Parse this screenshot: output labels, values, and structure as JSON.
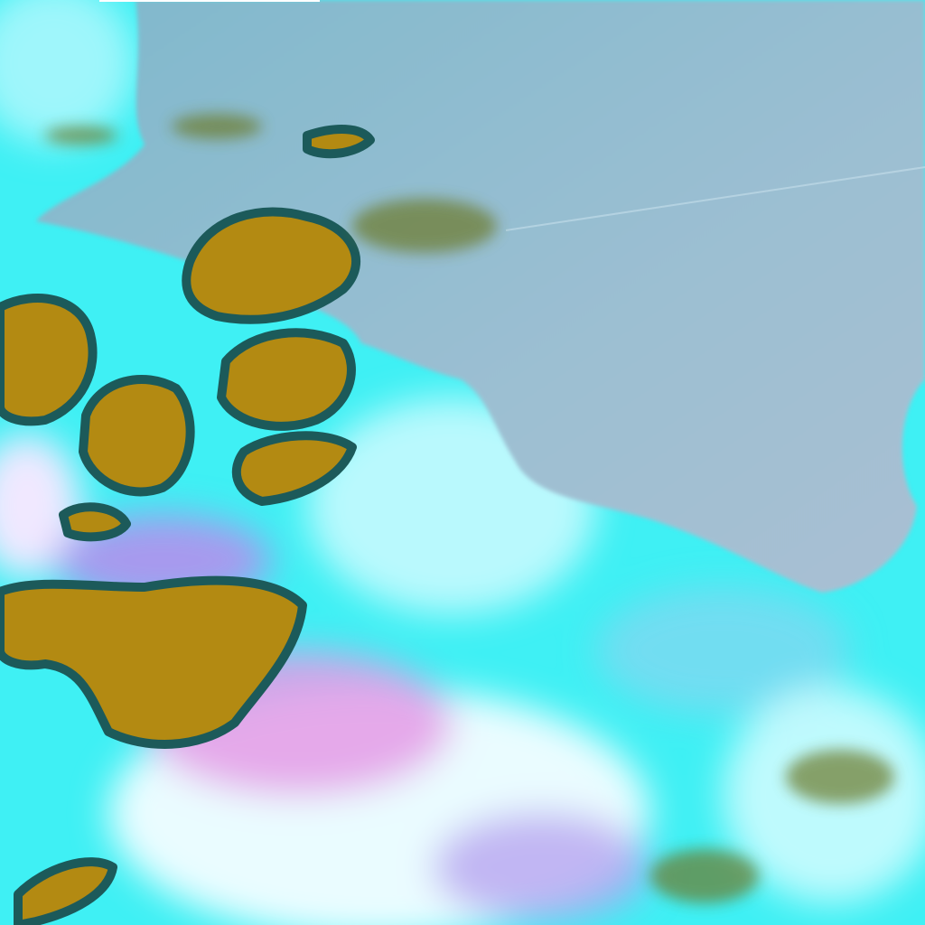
{
  "image": {
    "kind": "false-color satellite scene",
    "colors": {
      "sea": "#8fb8cc",
      "sea_light": "#a7c4d6",
      "cyan_land": "#2ff0f2",
      "white_haze": "#e8fbff",
      "pink_haze": "#e49ae6",
      "violet": "#9aa2ee",
      "cloud_ochre": "#b38a12",
      "cloud_edge": "#1c5a5a"
    },
    "regions": [
      "sea",
      "coastal-land",
      "cloud-cells",
      "haze"
    ]
  }
}
